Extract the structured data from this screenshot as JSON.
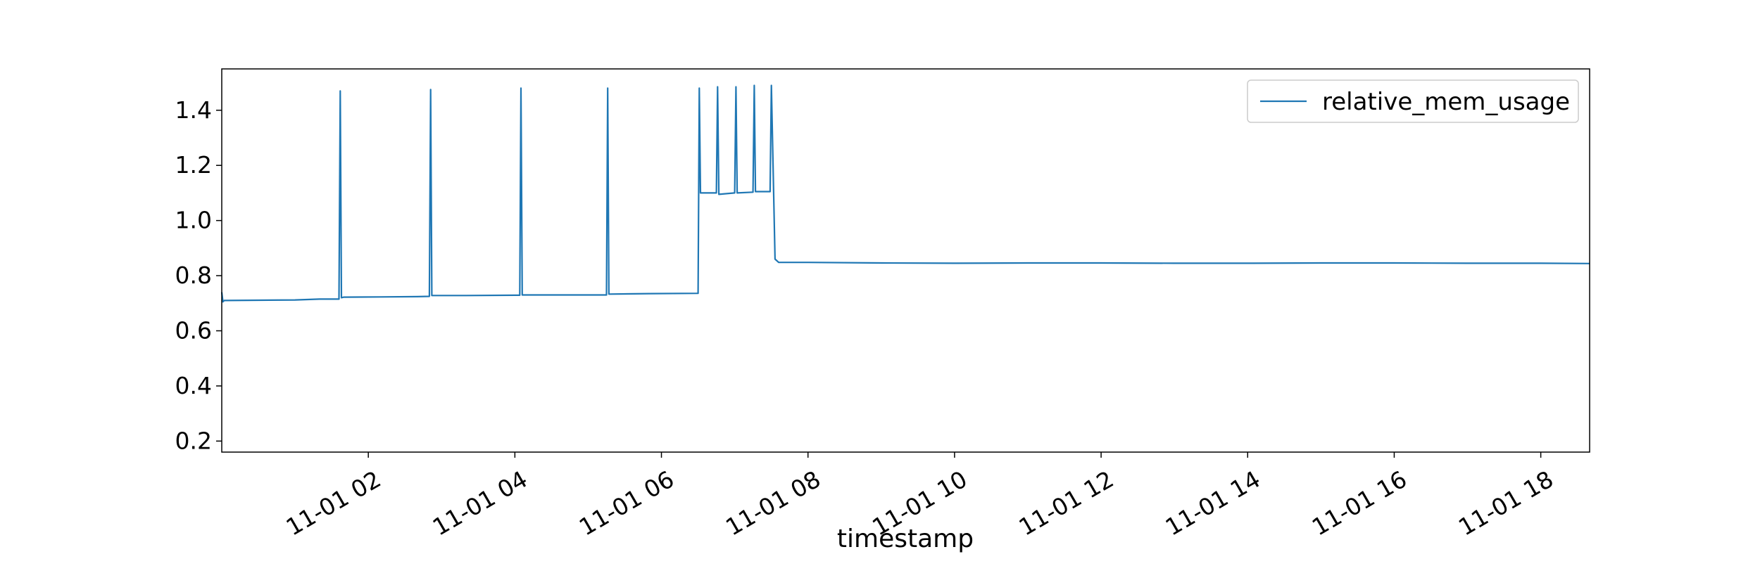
{
  "chart_data": {
    "type": "line",
    "title": "",
    "xlabel": "timestamp",
    "ylabel": "",
    "xlim": [
      "11-01 00:00",
      "11-01 18:40"
    ],
    "ylim": [
      0.16,
      1.55
    ],
    "x_ticks": [
      "11-01 02",
      "11-01 04",
      "11-01 06",
      "11-01 08",
      "11-01 10",
      "11-01 12",
      "11-01 14",
      "11-01 16",
      "11-01 18"
    ],
    "y_ticks": [
      "0.2",
      "0.4",
      "0.6",
      "0.8",
      "1.0",
      "1.2",
      "1.4"
    ],
    "grid": false,
    "legend_position": "top-right",
    "colors": {
      "line": "#1f77b4",
      "axis": "#000000",
      "legend_border": "#cccccc"
    },
    "series": [
      {
        "name": "relative_mem_usage",
        "x": [
          "11-01 00:00",
          "11-01 00:01",
          "11-01 00:02",
          "11-01 00:30",
          "11-01 01:00",
          "11-01 01:20",
          "11-01 01:36",
          "11-01 01:37",
          "11-01 01:38",
          "11-01 01:40",
          "11-01 02:10",
          "11-01 02:40",
          "11-01 02:50",
          "11-01 02:51",
          "11-01 02:52",
          "11-01 03:20",
          "11-01 04:00",
          "11-01 04:04",
          "11-01 04:05",
          "11-01 04:06",
          "11-01 04:40",
          "11-01 05:15",
          "11-01 05:16",
          "11-01 05:17",
          "11-01 05:50",
          "11-01 06:30",
          "11-01 06:31",
          "11-01 06:32",
          "11-01 06:45",
          "11-01 06:46",
          "11-01 06:47",
          "11-01 07:00",
          "11-01 07:01",
          "11-01 07:02",
          "11-01 07:15",
          "11-01 07:16",
          "11-01 07:17",
          "11-01 07:29",
          "11-01 07:30",
          "11-01 07:33",
          "11-01 07:36",
          "11-01 08:00",
          "11-01 09:00",
          "11-01 10:00",
          "11-01 11:00",
          "11-01 12:00",
          "11-01 13:00",
          "11-01 14:00",
          "11-01 15:00",
          "11-01 16:00",
          "11-01 17:00",
          "11-01 18:00",
          "11-01 18:40"
        ],
        "values": [
          0.74,
          0.705,
          0.71,
          0.711,
          0.712,
          0.715,
          0.715,
          1.47,
          0.72,
          0.722,
          0.723,
          0.724,
          0.725,
          1.475,
          0.728,
          0.728,
          0.729,
          0.729,
          1.48,
          0.73,
          0.73,
          0.73,
          1.48,
          0.733,
          0.735,
          0.736,
          1.48,
          1.1,
          1.1,
          1.485,
          1.095,
          1.1,
          1.485,
          1.1,
          1.103,
          1.49,
          1.105,
          1.105,
          1.49,
          0.86,
          0.848,
          0.848,
          0.846,
          0.845,
          0.846,
          0.846,
          0.845,
          0.845,
          0.846,
          0.846,
          0.845,
          0.845,
          0.844
        ]
      }
    ]
  }
}
